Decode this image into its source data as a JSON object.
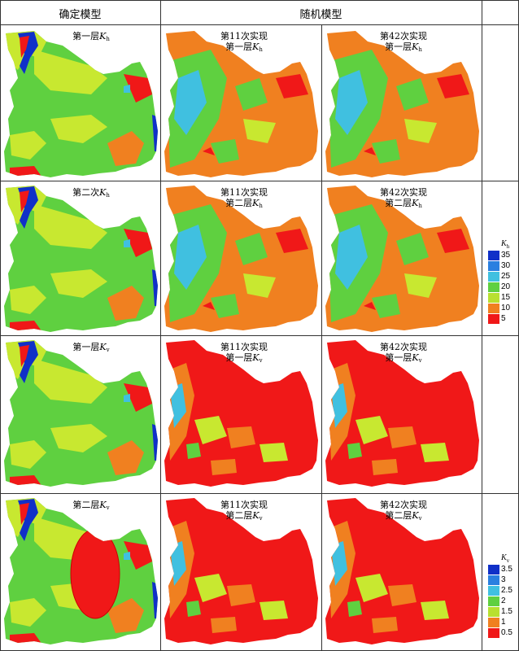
{
  "headers": {
    "deterministic": "确定模型",
    "stochastic": "随机模型"
  },
  "rows": [
    {
      "det": {
        "pre": "第一层",
        "var": "K",
        "sub": "h"
      },
      "s1": {
        "l1": "第11次实现",
        "pre": "第一层",
        "var": "K",
        "sub": "h"
      },
      "s2": {
        "l1": "第42次实现",
        "pre": "第一层",
        "var": "K",
        "sub": "h"
      }
    },
    {
      "det": {
        "pre": "第二次",
        "var": "K",
        "sub": "h"
      },
      "s1": {
        "l1": "第11次实现",
        "pre": "第二层",
        "var": "K",
        "sub": "h"
      },
      "s2": {
        "l1": "第42次实现",
        "pre": "第二层",
        "var": "K",
        "sub": "h"
      }
    },
    {
      "det": {
        "pre": "第一层",
        "var": "K",
        "sub": "v"
      },
      "s1": {
        "l1": "第11次实现",
        "pre": "第一层",
        "var": "K",
        "sub": "v"
      },
      "s2": {
        "l1": "第42次实现",
        "pre": "第一层",
        "var": "K",
        "sub": "v"
      }
    },
    {
      "det": {
        "pre": "第二层",
        "var": "K",
        "sub": "v"
      },
      "s1": {
        "l1": "第11次实现",
        "pre": "第二层",
        "var": "K",
        "sub": "v"
      },
      "s2": {
        "l1": "第42次实现",
        "pre": "第二层",
        "var": "K",
        "sub": "v"
      }
    }
  ],
  "legend_h": {
    "var": "K",
    "sub": "h",
    "labels": [
      "35",
      "30",
      "25",
      "20",
      "15",
      "10",
      "5"
    ],
    "colors": [
      "#1030c8",
      "#2a7fe0",
      "#40c0e0",
      "#5fd040",
      "#b8e030",
      "#f08020",
      "#f01818"
    ]
  },
  "legend_v": {
    "var": "K",
    "sub": "v",
    "labels": [
      "3.5",
      "3",
      "2.5",
      "2",
      "1.5",
      "1",
      "0.5"
    ],
    "colors": [
      "#1030c8",
      "#2a7fe0",
      "#40c0e0",
      "#5fd040",
      "#b8e030",
      "#f08020",
      "#f01818"
    ]
  },
  "colors": {
    "red": "#f01818",
    "orange": "#f08020",
    "yellowgreen": "#c8e830",
    "green": "#5fd040",
    "cyan": "#40c0e0",
    "blue": "#1030c8"
  }
}
